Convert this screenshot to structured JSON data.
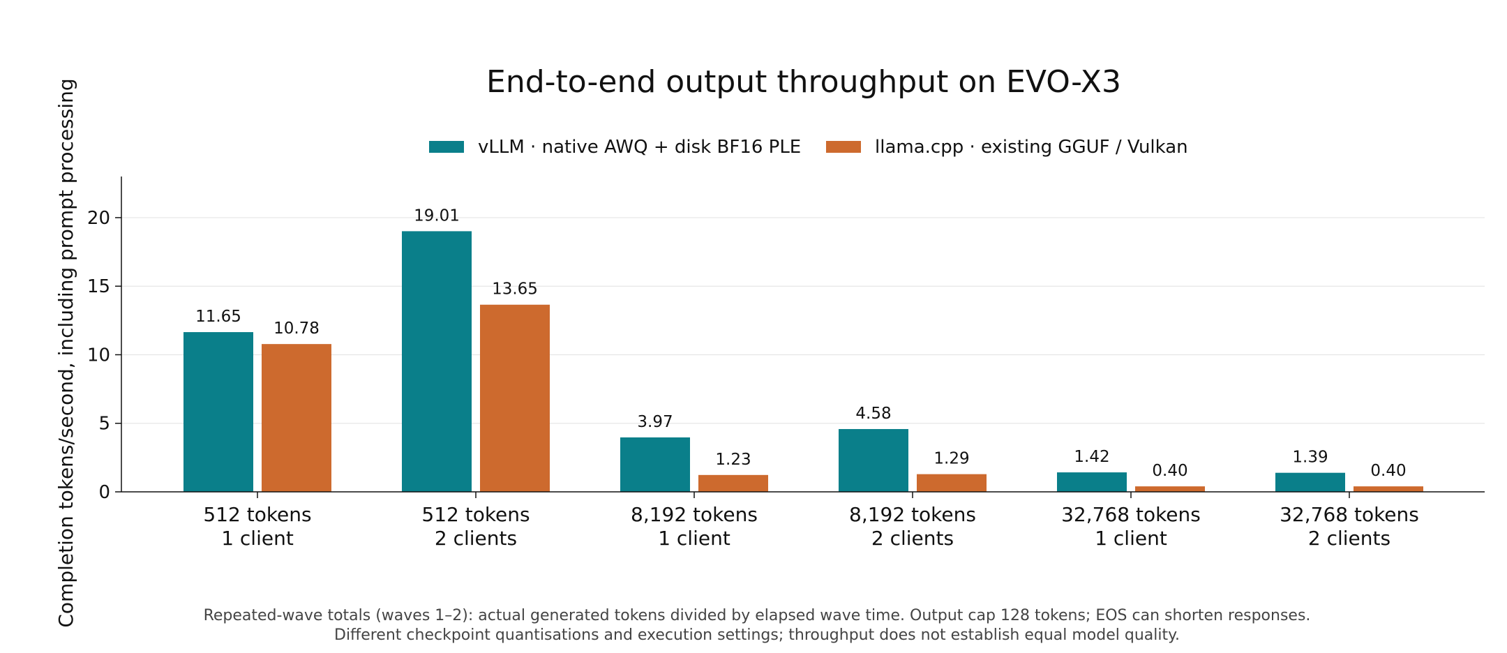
{
  "chart_data": {
    "type": "bar",
    "title": "End-to-end output throughput on EVO-X3",
    "ylabel": "Completion tokens/second, including prompt processing",
    "xlabel": "",
    "ylim": [
      0,
      23
    ],
    "yticks": [
      0,
      5,
      10,
      15,
      20
    ],
    "grid": "horizontal",
    "legend": "top-center",
    "categories": [
      [
        "512 tokens",
        "1 client"
      ],
      [
        "512 tokens",
        "2 clients"
      ],
      [
        "8,192 tokens",
        "1 client"
      ],
      [
        "8,192 tokens",
        "2 clients"
      ],
      [
        "32,768 tokens",
        "1 client"
      ],
      [
        "32,768 tokens",
        "2 clients"
      ]
    ],
    "series": [
      {
        "name": "vLLM · native AWQ + disk BF16 PLE",
        "color": "#0a7f8a",
        "values": [
          11.65,
          19.01,
          3.97,
          4.58,
          1.42,
          1.39
        ],
        "labels": [
          "11.65",
          "19.01",
          "3.97",
          "4.58",
          "1.42",
          "1.39"
        ]
      },
      {
        "name": "llama.cpp · existing GGUF / Vulkan",
        "color": "#cd6a2e",
        "values": [
          10.78,
          13.65,
          1.23,
          1.29,
          0.4,
          0.4
        ],
        "labels": [
          "10.78",
          "13.65",
          "1.23",
          "1.29",
          "0.40",
          "0.40"
        ]
      }
    ],
    "footnotes": [
      "Repeated-wave totals (waves 1–2): actual generated tokens divided by elapsed wave time. Output cap 128 tokens; EOS can shorten responses.",
      "Different checkpoint quantisations and execution settings; throughput does not establish equal model quality."
    ]
  }
}
